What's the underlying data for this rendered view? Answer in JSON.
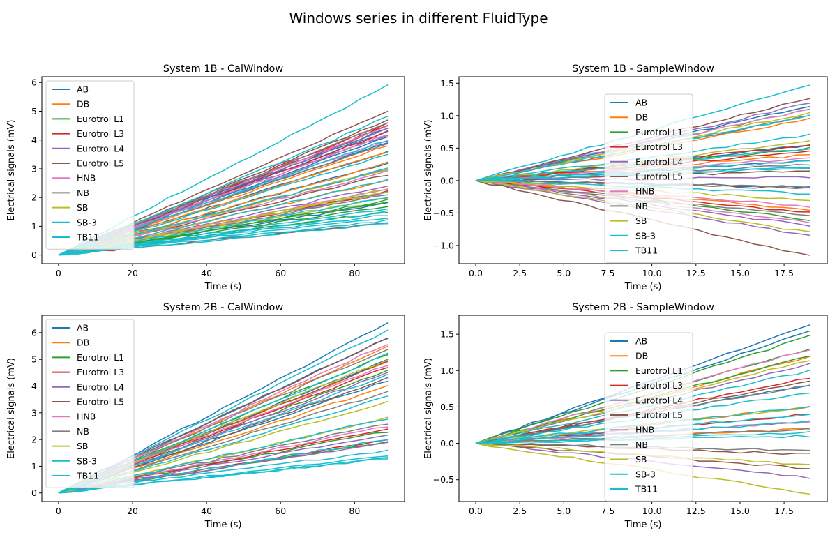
{
  "figure": {
    "title": "Windows series in different FluidType"
  },
  "palette": [
    "#1f77b4",
    "#ff7f0e",
    "#2ca02c",
    "#d62728",
    "#9467bd",
    "#8c564b",
    "#e377c2",
    "#7f7f7f",
    "#bcbd22",
    "#17becf",
    "#17becf"
  ],
  "chart_data": [
    {
      "type": "line",
      "title": "System 1B - CalWindow",
      "xlabel": "Time (s)",
      "ylabel": "Electrical signals (mV)",
      "xlim": [
        -4.5,
        93.5
      ],
      "ylim": [
        -0.3,
        6.2
      ],
      "xticks": [
        0,
        20,
        40,
        60,
        80
      ],
      "yticks": [
        0,
        1,
        2,
        3,
        4,
        5,
        6
      ],
      "legend": [
        "AB",
        "DB",
        "Eurotrol L1",
        "Eurotrol L3",
        "Eurotrol L4",
        "Eurotrol L5",
        "HNB",
        "NB",
        "SB",
        "SB-3",
        "TB11"
      ],
      "legend_position": "upper-left",
      "x_end": 89,
      "series_endpoints": [
        {
          "name": "AB",
          "finals": [
            4.4,
            4.3,
            4.1,
            3.9,
            3.6,
            3.2,
            2.2,
            1.8
          ]
        },
        {
          "name": "DB",
          "finals": [
            3.8,
            3.6,
            3.2,
            2.6
          ]
        },
        {
          "name": "Eurotrol L1",
          "finals": [
            1.9,
            1.85,
            1.7,
            1.5
          ]
        },
        {
          "name": "Eurotrol L3",
          "finals": [
            4.6,
            4.5,
            4.3,
            2.2
          ]
        },
        {
          "name": "Eurotrol L4",
          "finals": [
            4.4,
            4.2,
            2.4,
            2.2
          ]
        },
        {
          "name": "Eurotrol L5",
          "finals": [
            5.0,
            4.7,
            4.5,
            2.8,
            1.1
          ]
        },
        {
          "name": "HNB",
          "finals": [
            4.5,
            4.2,
            4.0,
            2.9,
            2.3
          ]
        },
        {
          "name": "NB",
          "finals": [
            4.6,
            3.9,
            3.0,
            2.1
          ]
        },
        {
          "name": "SB",
          "finals": [
            3.0,
            2.3,
            2.2,
            2.0
          ]
        },
        {
          "name": "SB-3",
          "finals": [
            1.6,
            1.4,
            1.3,
            1.2,
            1.1
          ]
        },
        {
          "name": "TB11",
          "finals": [
            5.9,
            4.8,
            4.0,
            3.5,
            3.0,
            2.6,
            2.0,
            1.5
          ]
        }
      ]
    },
    {
      "type": "line",
      "title": "System 1B - SampleWindow",
      "xlabel": "Time (s)",
      "ylabel": "Electrical signals (mV)",
      "xlim": [
        -0.95,
        19.95
      ],
      "ylim": [
        -1.28,
        1.6
      ],
      "xticks": [
        0.0,
        2.5,
        5.0,
        7.5,
        10.0,
        12.5,
        15.0,
        17.5
      ],
      "yticks": [
        -1.0,
        -0.5,
        0.0,
        0.5,
        1.0,
        1.5
      ],
      "legend": [
        "AB",
        "DB",
        "Eurotrol L1",
        "Eurotrol L3",
        "Eurotrol L4",
        "Eurotrol L5",
        "HNB",
        "NB",
        "SB",
        "SB-3",
        "TB11"
      ],
      "legend_position": "upper-center",
      "x_end": 19,
      "series_endpoints": [
        {
          "name": "AB",
          "finals": [
            1.15,
            0.55,
            0.3,
            -0.1
          ]
        },
        {
          "name": "DB",
          "finals": [
            0.95,
            0.4,
            -0.45
          ]
        },
        {
          "name": "Eurotrol L1",
          "finals": [
            1.1,
            0.5,
            -0.6
          ]
        },
        {
          "name": "Eurotrol L3",
          "finals": [
            0.55,
            0.45,
            -0.5
          ]
        },
        {
          "name": "Eurotrol L4",
          "finals": [
            1.2,
            0.05,
            -0.7,
            -0.85
          ]
        },
        {
          "name": "Eurotrol L5",
          "finals": [
            1.27,
            0.15,
            -0.12,
            -1.16
          ]
        },
        {
          "name": "HNB",
          "finals": [
            1.1,
            0.35,
            -0.4,
            -0.65
          ]
        },
        {
          "name": "NB",
          "finals": [
            1.0,
            0.25,
            -0.1,
            -0.55
          ]
        },
        {
          "name": "SB",
          "finals": [
            1.05,
            0.6,
            -0.3,
            -0.8
          ]
        },
        {
          "name": "SB-3",
          "finals": [
            0.5,
            0.2,
            -0.2
          ]
        },
        {
          "name": "TB11",
          "finals": [
            1.49,
            1.0,
            0.7,
            0.3,
            0.2
          ]
        }
      ]
    },
    {
      "type": "line",
      "title": "System 2B - CalWindow",
      "xlabel": "Time (s)",
      "ylabel": "Electrical signals (mV)",
      "xlim": [
        -4.5,
        93.5
      ],
      "ylim": [
        -0.32,
        6.65
      ],
      "xticks": [
        0,
        20,
        40,
        60,
        80
      ],
      "yticks": [
        0,
        1,
        2,
        3,
        4,
        5,
        6
      ],
      "legend": [
        "AB",
        "DB",
        "Eurotrol L1",
        "Eurotrol L3",
        "Eurotrol L4",
        "Eurotrol L5",
        "HNB",
        "NB",
        "SB",
        "SB-3",
        "TB11"
      ],
      "legend_position": "upper-left",
      "x_end": 89,
      "series_endpoints": [
        {
          "name": "AB",
          "finals": [
            6.35,
            5.8,
            5.0,
            4.2
          ]
        },
        {
          "name": "DB",
          "finals": [
            5.5,
            4.9,
            4.0
          ]
        },
        {
          "name": "Eurotrol L1",
          "finals": [
            5.2,
            4.6,
            2.3,
            1.9
          ]
        },
        {
          "name": "Eurotrol L3",
          "finals": [
            4.7,
            2.4,
            2.0
          ]
        },
        {
          "name": "Eurotrol L4",
          "finals": [
            4.5,
            2.2,
            1.9
          ]
        },
        {
          "name": "Eurotrol L5",
          "finals": [
            5.8,
            4.9,
            4.3
          ]
        },
        {
          "name": "HNB",
          "finals": [
            5.6,
            4.8,
            2.5
          ]
        },
        {
          "name": "NB",
          "finals": [
            5.4,
            3.8,
            2.6
          ]
        },
        {
          "name": "SB",
          "finals": [
            5.0,
            3.4,
            2.8
          ]
        },
        {
          "name": "SB-3",
          "finals": [
            1.6,
            1.4,
            1.3
          ]
        },
        {
          "name": "TB11",
          "finals": [
            6.1,
            5.2,
            4.4,
            3.6,
            2.8,
            2.0,
            1.3
          ]
        }
      ]
    },
    {
      "type": "line",
      "title": "System 2B - SampleWindow",
      "xlabel": "Time (s)",
      "ylabel": "Electrical signals (mV)",
      "xlim": [
        -0.95,
        19.95
      ],
      "ylim": [
        -0.8,
        1.76
      ],
      "xticks": [
        0.0,
        2.5,
        5.0,
        7.5,
        10.0,
        12.5,
        15.0,
        17.5
      ],
      "yticks": [
        -0.5,
        0.0,
        0.5,
        1.0,
        1.5
      ],
      "legend": [
        "AB",
        "DB",
        "Eurotrol L1",
        "Eurotrol L3",
        "Eurotrol L4",
        "Eurotrol L5",
        "HNB",
        "NB",
        "SB",
        "SB-3",
        "TB11"
      ],
      "legend_position": "upper-center",
      "x_end": 19,
      "series_endpoints": [
        {
          "name": "AB",
          "finals": [
            1.64,
            1.55,
            0.8
          ]
        },
        {
          "name": "DB",
          "finals": [
            1.2,
            0.5,
            0.2
          ]
        },
        {
          "name": "Eurotrol L1",
          "finals": [
            1.48,
            1.3,
            1.2
          ]
        },
        {
          "name": "Eurotrol L3",
          "finals": [
            0.9,
            0.4
          ]
        },
        {
          "name": "Eurotrol L4",
          "finals": [
            1.1,
            0.3,
            -0.47
          ]
        },
        {
          "name": "Eurotrol L5",
          "finals": [
            0.85,
            -0.15,
            -0.35
          ]
        },
        {
          "name": "HNB",
          "finals": [
            1.3,
            0.3
          ]
        },
        {
          "name": "NB",
          "finals": [
            0.8,
            0.2,
            -0.1
          ]
        },
        {
          "name": "SB",
          "finals": [
            1.15,
            0.5,
            -0.3,
            -0.69
          ]
        },
        {
          "name": "SB-3",
          "finals": [
            0.4,
            0.1
          ]
        },
        {
          "name": "TB11",
          "finals": [
            1.0,
            0.7,
            0.5,
            0.3,
            0.15
          ]
        }
      ]
    }
  ]
}
